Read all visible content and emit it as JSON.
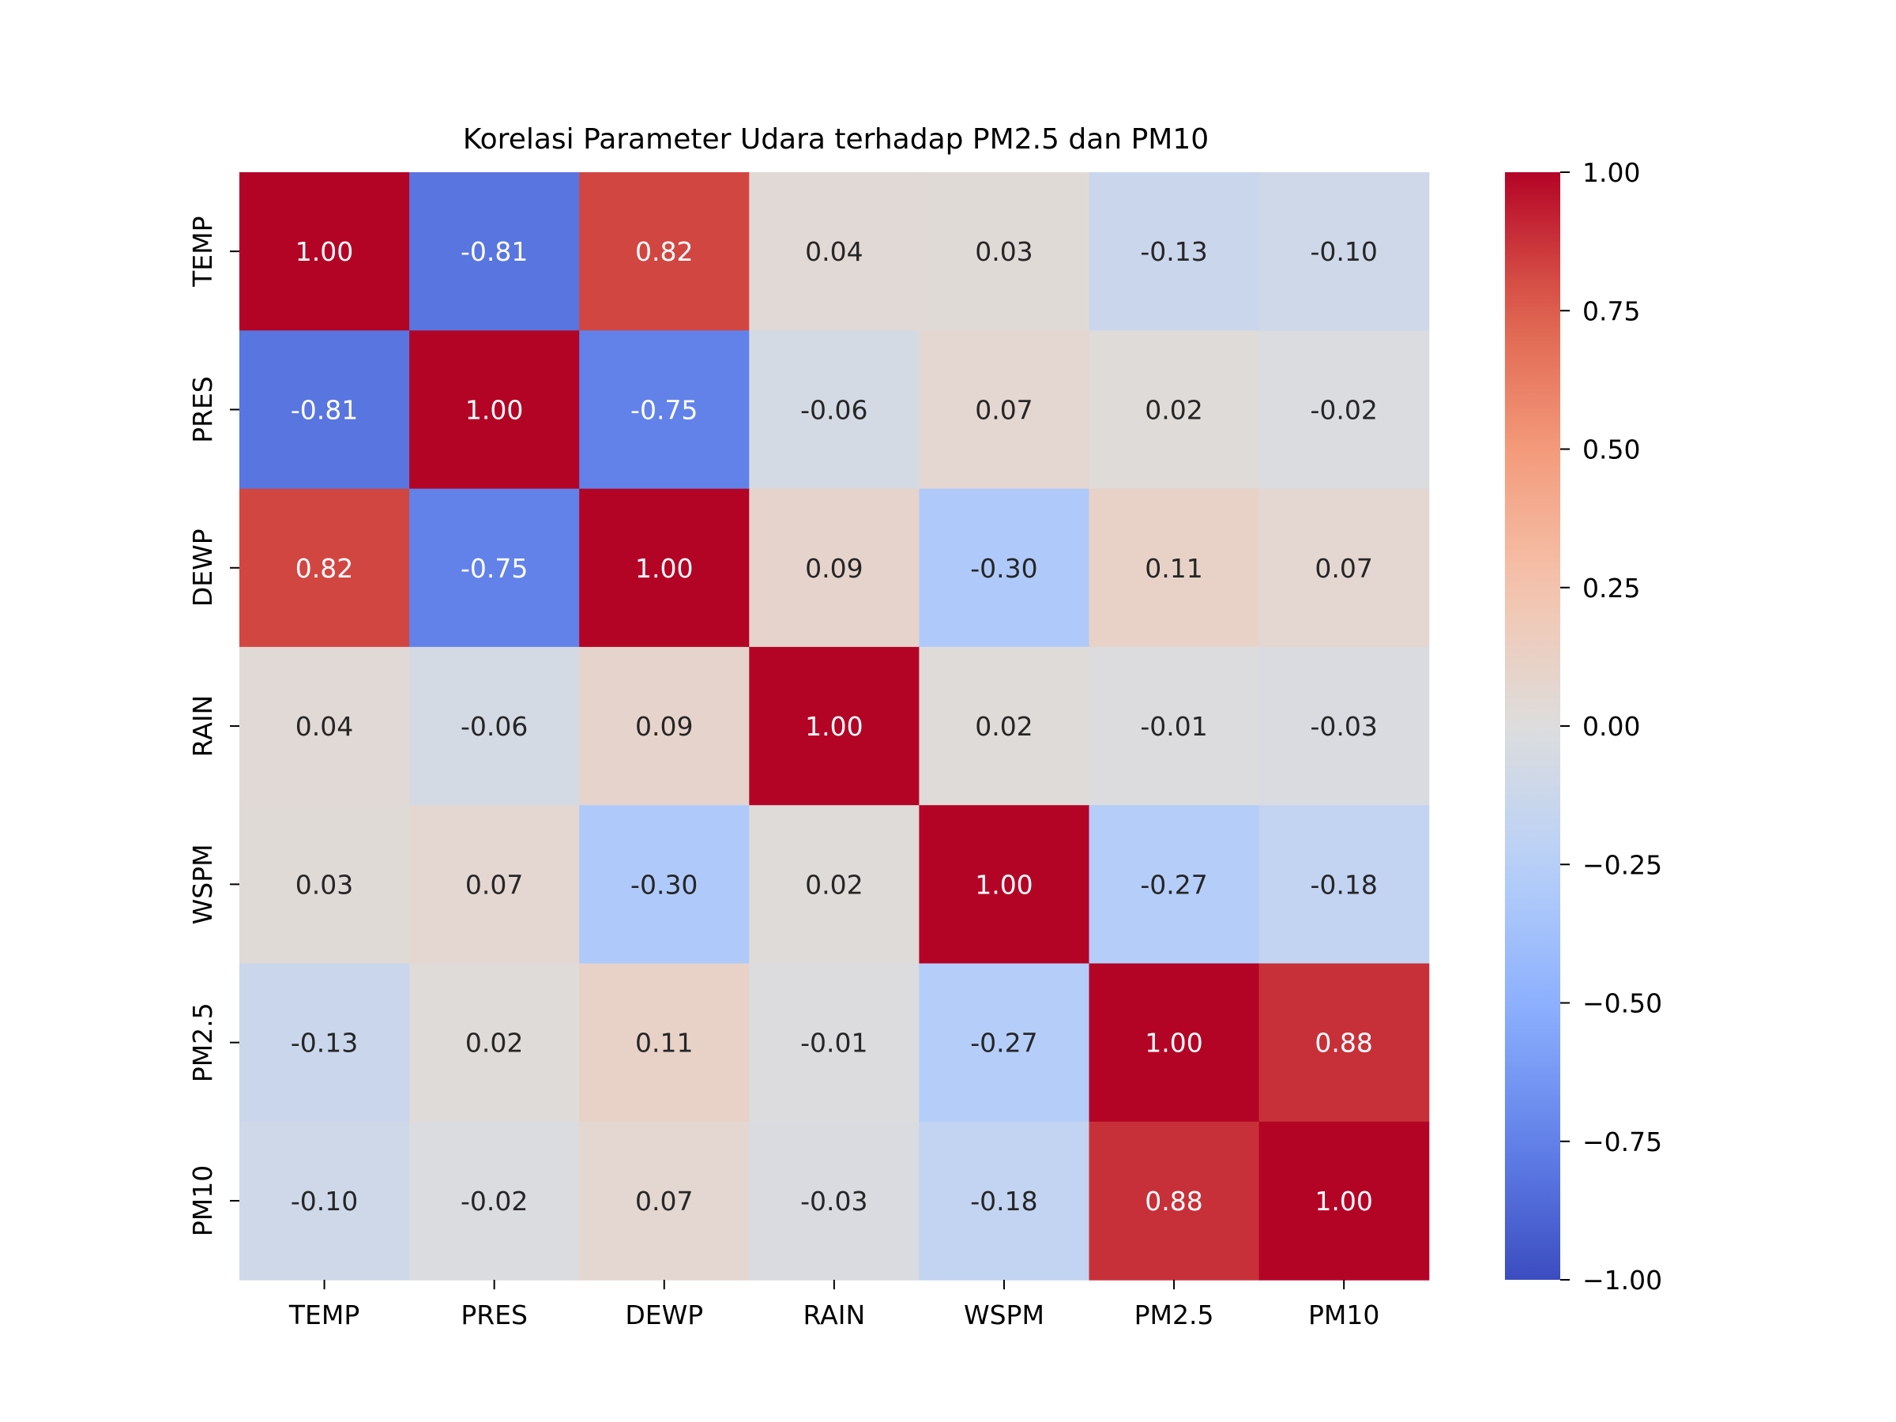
{
  "chart_data": {
    "type": "heatmap",
    "title": "Korelasi Parameter Udara terhadap PM2.5 dan PM10",
    "x_labels": [
      "TEMP",
      "PRES",
      "DEWP",
      "RAIN",
      "WSPM",
      "PM2.5",
      "PM10"
    ],
    "y_labels": [
      "TEMP",
      "PRES",
      "DEWP",
      "RAIN",
      "WSPM",
      "PM2.5",
      "PM10"
    ],
    "values": [
      [
        1.0,
        -0.81,
        0.82,
        0.04,
        0.03,
        -0.13,
        -0.1
      ],
      [
        -0.81,
        1.0,
        -0.75,
        -0.06,
        0.07,
        0.02,
        -0.02
      ],
      [
        0.82,
        -0.75,
        1.0,
        0.09,
        -0.3,
        0.11,
        0.07
      ],
      [
        0.04,
        -0.06,
        0.09,
        1.0,
        0.02,
        -0.01,
        -0.03
      ],
      [
        0.03,
        0.07,
        -0.3,
        0.02,
        1.0,
        -0.27,
        -0.18
      ],
      [
        -0.13,
        0.02,
        0.11,
        -0.01,
        -0.27,
        1.0,
        0.88
      ],
      [
        -0.1,
        -0.02,
        0.07,
        -0.03,
        -0.18,
        0.88,
        1.0
      ]
    ],
    "value_format": "2 decimals",
    "colormap": "coolwarm",
    "vmin": -1.0,
    "vmax": 1.0,
    "colorbar": {
      "ticks": [
        1.0,
        0.75,
        0.5,
        0.25,
        0.0,
        -0.25,
        -0.5,
        -0.75,
        -1.0
      ],
      "tick_labels": [
        "1.00",
        "0.75",
        "0.50",
        "0.25",
        "0.00",
        "−0.25",
        "−0.50",
        "−0.75",
        "−1.00"
      ]
    },
    "colors": {
      "light_text": "#ffffff",
      "dark_text": "#262626"
    }
  }
}
